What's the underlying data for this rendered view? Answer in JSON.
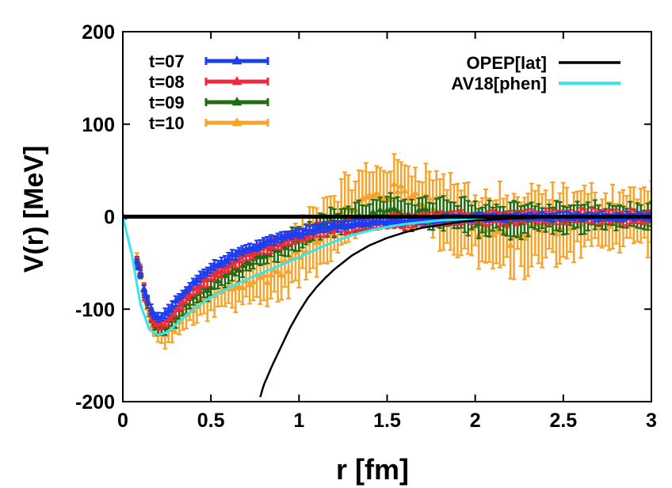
{
  "chart_data": {
    "type": "scatter",
    "title": "",
    "xlabel": "r [fm]",
    "ylabel": "V(r) [MeV]",
    "xlim": [
      0,
      3
    ],
    "ylim": [
      -200,
      200
    ],
    "xticks": [
      0,
      0.5,
      1,
      1.5,
      2,
      2.5,
      3
    ],
    "xtick_labels": [
      "0",
      "0.5",
      "1",
      "1.5",
      "2",
      "2.5",
      "3"
    ],
    "yticks": [
      -200,
      -100,
      0,
      100,
      200
    ],
    "ytick_labels": [
      "-200",
      "-100",
      "0",
      "100",
      "200"
    ],
    "grid": false,
    "legend_left": [
      {
        "label": "t=07",
        "color": "#1a3ef0",
        "style": "points-errorbars"
      },
      {
        "label": "t=08",
        "color": "#f0283c",
        "style": "points-errorbars"
      },
      {
        "label": "t=09",
        "color": "#1f6b12",
        "style": "points-errorbars"
      },
      {
        "label": "t=10",
        "color": "#f5a32a",
        "style": "points-errorbars"
      }
    ],
    "legend_right": [
      {
        "label": "OPEP[lat]",
        "color": "#000000",
        "style": "line"
      },
      {
        "label": "AV18[phen]",
        "color": "#33e6f0",
        "style": "line"
      }
    ],
    "series": [
      {
        "name": "t=10",
        "color": "#f5a32a",
        "x": [
          0.0,
          0.09,
          0.13,
          0.17,
          0.2,
          0.25,
          0.3,
          0.4,
          0.5,
          0.6,
          0.7,
          0.8,
          0.9,
          1.0,
          1.1,
          1.2,
          1.3,
          1.4,
          1.5,
          1.6,
          1.7,
          1.8,
          1.9,
          2.0,
          2.1,
          2.2,
          2.3,
          2.4,
          2.5,
          2.6,
          2.7,
          2.8,
          2.9,
          3.0
        ],
        "y": [
          0,
          -50,
          -90,
          -118,
          -128,
          -125,
          -115,
          -98,
          -88,
          -78,
          -72,
          -65,
          -58,
          -40,
          -20,
          -5,
          10,
          20,
          25,
          28,
          20,
          10,
          0,
          -10,
          -18,
          -20,
          -15,
          -10,
          -8,
          -5,
          -3,
          -2,
          -1,
          0
        ],
        "err": [
          2,
          6,
          8,
          10,
          12,
          14,
          15,
          18,
          20,
          22,
          24,
          26,
          28,
          30,
          32,
          32,
          32,
          32,
          32,
          30,
          32,
          34,
          36,
          38,
          40,
          40,
          38,
          36,
          34,
          32,
          30,
          30,
          30,
          30
        ]
      },
      {
        "name": "t=09",
        "color": "#1f6b12",
        "x": [
          0.0,
          0.09,
          0.13,
          0.17,
          0.2,
          0.25,
          0.3,
          0.4,
          0.5,
          0.6,
          0.7,
          0.8,
          0.9,
          1.0,
          1.1,
          1.2,
          1.3,
          1.4,
          1.5,
          1.6,
          1.7,
          1.8,
          1.9,
          2.0,
          2.1,
          2.2,
          2.3,
          2.4,
          2.5,
          2.6,
          2.7,
          2.8,
          2.9,
          3.0
        ],
        "y": [
          0,
          -52,
          -88,
          -112,
          -120,
          -117,
          -106,
          -88,
          -74,
          -62,
          -50,
          -40,
          -32,
          -22,
          -12,
          -6,
          -2,
          2,
          4,
          5,
          4,
          2,
          0,
          -2,
          -3,
          -3,
          -2,
          -2,
          -1,
          -1,
          -1,
          0,
          0,
          0
        ],
        "err": [
          2,
          5,
          6,
          8,
          9,
          10,
          10,
          11,
          11,
          11,
          11,
          11,
          12,
          12,
          12,
          13,
          14,
          14,
          15,
          15,
          16,
          16,
          17,
          18,
          18,
          17,
          16,
          15,
          14,
          14,
          13,
          13,
          12,
          12
        ]
      },
      {
        "name": "t=08",
        "color": "#f0283c",
        "x": [
          0.0,
          0.09,
          0.13,
          0.17,
          0.2,
          0.25,
          0.3,
          0.4,
          0.5,
          0.6,
          0.7,
          0.8,
          0.9,
          1.0,
          1.1,
          1.2,
          1.3,
          1.4,
          1.5,
          1.6,
          1.7,
          1.8,
          1.9,
          2.0,
          2.1,
          2.2,
          2.3,
          2.4,
          2.5,
          2.6,
          2.7,
          2.8,
          2.9,
          3.0
        ],
        "y": [
          0,
          -53,
          -88,
          -110,
          -117,
          -113,
          -100,
          -80,
          -64,
          -52,
          -42,
          -34,
          -28,
          -22,
          -16,
          -12,
          -9,
          -7,
          -5,
          -4,
          -3,
          -2,
          -2,
          -1,
          -1,
          -1,
          0,
          0,
          0,
          0,
          0,
          0,
          0,
          0
        ],
        "err": [
          1,
          4,
          5,
          6,
          7,
          7,
          7,
          7,
          7,
          7,
          7,
          7,
          7,
          7,
          7,
          7,
          7,
          7,
          7,
          7,
          7,
          7,
          7,
          7,
          7,
          7,
          7,
          7,
          7,
          7,
          7,
          7,
          7,
          7
        ]
      },
      {
        "name": "t=07",
        "color": "#1a3ef0",
        "x": [
          0.0,
          0.09,
          0.13,
          0.17,
          0.2,
          0.25,
          0.3,
          0.4,
          0.5,
          0.6,
          0.7,
          0.8,
          0.9,
          1.0,
          1.1,
          1.2,
          1.3,
          1.4,
          1.5,
          1.6,
          1.7,
          1.8,
          1.9,
          2.0,
          2.1,
          2.2,
          2.3,
          2.4,
          2.5,
          2.6,
          2.7,
          2.8,
          2.9,
          3.0
        ],
        "y": [
          0,
          -55,
          -85,
          -104,
          -110,
          -105,
          -92,
          -72,
          -56,
          -44,
          -35,
          -28,
          -22,
          -17,
          -13,
          -10,
          -8,
          -6,
          -5,
          -4,
          -3,
          -2,
          -2,
          -1,
          -1,
          -1,
          0,
          0,
          0,
          0,
          0,
          0,
          0,
          0
        ],
        "err": [
          1,
          3,
          4,
          5,
          5,
          5,
          5,
          5,
          5,
          5,
          5,
          5,
          5,
          5,
          5,
          5,
          4,
          4,
          4,
          4,
          4,
          4,
          4,
          4,
          4,
          4,
          4,
          4,
          4,
          4,
          4,
          4,
          4,
          4
        ]
      },
      {
        "name": "AV18[phen]",
        "color": "#33e6f0",
        "line": true,
        "x": [
          0.0,
          0.05,
          0.1,
          0.15,
          0.2,
          0.25,
          0.3,
          0.35,
          0.4,
          0.5,
          0.6,
          0.7,
          0.8,
          0.9,
          1.0,
          1.1,
          1.2,
          1.3,
          1.4,
          1.5,
          1.6,
          1.7,
          1.8,
          1.9,
          2.0,
          2.2,
          2.4,
          2.6,
          2.8,
          3.0
        ],
        "y": [
          0,
          -40,
          -95,
          -122,
          -128,
          -125,
          -117,
          -108,
          -100,
          -87,
          -77,
          -68,
          -60,
          -52,
          -44,
          -35,
          -27,
          -20,
          -15,
          -11,
          -8,
          -6,
          -4,
          -3,
          -2,
          -1,
          -0.5,
          -0.3,
          -0.2,
          -0.1
        ]
      },
      {
        "name": "OPEP[lat]",
        "color": "#000000",
        "line": true,
        "x": [
          0.78,
          0.8,
          0.85,
          0.9,
          0.95,
          1.0,
          1.05,
          1.1,
          1.15,
          1.2,
          1.3,
          1.4,
          1.5,
          1.6,
          1.7,
          1.8,
          1.9,
          2.0,
          2.2,
          2.4,
          2.6,
          2.8,
          3.0
        ],
        "y": [
          -195,
          -182,
          -160,
          -140,
          -120,
          -103,
          -88,
          -76,
          -66,
          -57,
          -42,
          -31,
          -23,
          -17,
          -12,
          -9,
          -6,
          -4,
          -2,
          -1,
          -0.6,
          -0.3,
          -0.1
        ]
      }
    ],
    "reference_line": {
      "y": 0,
      "color": "#000000"
    }
  }
}
